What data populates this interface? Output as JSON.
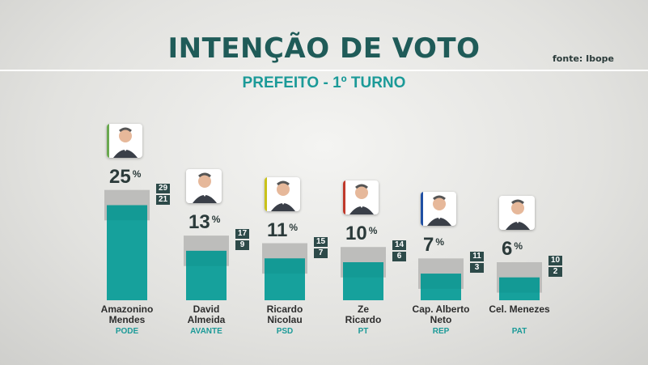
{
  "header": {
    "title": "INTENÇÃO DE VOTO",
    "subtitle": "PREFEITO - 1º TURNO",
    "source": "fonte: Ibope"
  },
  "colors": {
    "title": "#1f5b58",
    "accent": "#1b9a98",
    "bar": "#16a19c",
    "margin_band": "#bdbdbb",
    "margin_box": "#2d4a49"
  },
  "candidates": [
    {
      "name1": "Amazonino",
      "name2": "Mendes",
      "party": "PODE",
      "value": "25",
      "upper": "29",
      "lower": "21",
      "photo_accent": "#6aa84f",
      "icon": "portrait-icon"
    },
    {
      "name1": "David",
      "name2": "Almeida",
      "party": "AVANTE",
      "value": "13",
      "upper": "17",
      "lower": "9",
      "photo_accent": "#ffffff",
      "icon": "portrait-icon"
    },
    {
      "name1": "Ricardo",
      "name2": "Nicolau",
      "party": "PSD",
      "value": "11",
      "upper": "15",
      "lower": "7",
      "photo_accent": "#c9c21a",
      "icon": "portrait-icon"
    },
    {
      "name1": "Ze",
      "name2": "Ricardo",
      "party": "PT",
      "value": "10",
      "upper": "14",
      "lower": "6",
      "photo_accent": "#c0392b",
      "icon": "portrait-icon"
    },
    {
      "name1": "Cap. Alberto",
      "name2": "Neto",
      "party": "REP",
      "value": "7",
      "upper": "11",
      "lower": "3",
      "photo_accent": "#1f4fa3",
      "icon": "portrait-icon"
    },
    {
      "name1": "Cel. Menezes",
      "name2": "",
      "party": "PAT",
      "value": "6",
      "upper": "10",
      "lower": "2",
      "photo_accent": "#ffffff",
      "icon": "portrait-icon"
    }
  ],
  "chart_data": {
    "type": "bar",
    "title": "INTENÇÃO DE VOTO",
    "subtitle": "PREFEITO - 1º TURNO",
    "categories": [
      "Amazonino Mendes",
      "David Almeida",
      "Ricardo Nicolau",
      "Ze Ricardo",
      "Cap. Alberto Neto",
      "Cel. Menezes"
    ],
    "series": [
      {
        "values": [
          25,
          13,
          11,
          10,
          7,
          6
        ]
      }
    ],
    "margin_upper": [
      29,
      17,
      15,
      14,
      11,
      10
    ],
    "margin_lower": [
      21,
      9,
      7,
      6,
      3,
      2
    ],
    "unit": "%",
    "ylim": [
      0,
      30
    ],
    "grid": false
  }
}
